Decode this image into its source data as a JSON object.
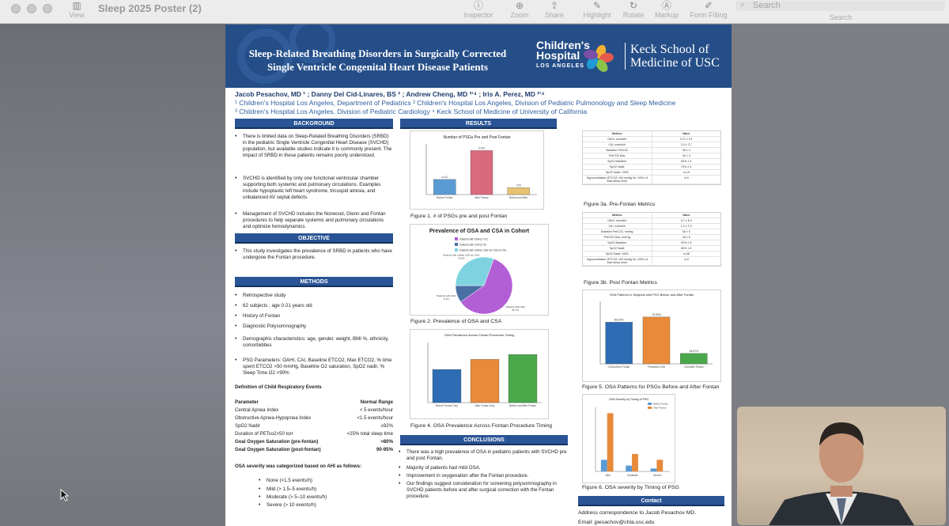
{
  "window": {
    "title": "Sleep 2025 Poster (2)"
  },
  "toolbar": {
    "view": "View",
    "inspector": "Inspector",
    "zoom": "Zoom",
    "share": "Share",
    "highlight": "Highlight",
    "rotate": "Rotate",
    "markup": "Markup",
    "form_filling": "Form Filling",
    "search_placeholder": "Search",
    "search_label": "Search"
  },
  "poster": {
    "title_line1": "Sleep-Related Breathing Disorders in Surgically Corrected",
    "title_line2": "Single Ventricle Congenital Heart Disease Patients",
    "chla_line1": "Children's",
    "chla_line2": "Hospital",
    "chla_line3": "LOS ANGELES",
    "usc_line1": "Keck School of",
    "usc_line2": "Medicine of USC",
    "authors": "Jacob Pesachov, MD ¹ ; Danny Del Cid-Linares, BS ² ; Andrew Cheng, MD ³ʼ⁴ ; Iris A. Perez, MD ²ʼ⁴",
    "affil1": "¹ Children's Hospital Los Angeles, Department of Pediatrics ² Children's Hospital Los Angeles, Division of Pediatric Pulmonology and Sleep Medicine",
    "affil2": "³ Children's Hospital Los Angeles, Division of Pediatric Cardiology ⁴ Keck School of Medicine of University of California",
    "background": {
      "head": "BACKGROUND",
      "items": [
        "There is limited data on Sleep-Related Breathing Disorders (SRBD) in the pediatric Single Ventricle Congenital Heart Disease (SVCHD) population, but available studies indicate it is commonly present. The impact of SRBD in these patients remains poorly understood.",
        "SVCHD is identified by only one functional ventricular chamber supporting both systemic and pulmonary circulations. Examples include hypoplastic left heart syndrome, tricuspid atresia, and unbalanced AV septal defects.",
        "Management of SVCHD includes the Norwood, Glenn and Fontan procedures to help separate systemic and pulmonary circulations and optimize hemodynamics."
      ]
    },
    "objective": {
      "head": "OBJECTIVE",
      "items": [
        "This study investigates the prevalence of SRBD in patients who have undergone the Fontan procedure."
      ]
    },
    "methods": {
      "head": "METHODS",
      "items": [
        "Retrospective study",
        "62 subjects ; age 0-21 years old",
        "History of Fontan",
        "Diagnostic Polysomnography",
        "Demographic characteristics: age, gender, weight, BMI %, ethnicity, comorbidities",
        "PSG Parameters: OAHI, CAI, Baseline ETCO2, Max ETCO2, % time spent ETCO2 >50 mmHg, Baseline O2 saturation, SpO2 nadir, % Sleep Time O2 <90%"
      ]
    },
    "def_title": "Definition of Child Respiratory Events",
    "def_header": [
      "Parameter",
      "Normal Range"
    ],
    "def_rows": [
      [
        "Central Apnea Index",
        "< 5 events/hour"
      ],
      [
        "Obstructive Apnea-Hypopnea Index",
        "<1.5 events/hour"
      ],
      [
        "SpO2 Nadir",
        "≥92%"
      ],
      [
        "Duration of PETco2>50 torr",
        "<25% total sleep time"
      ]
    ],
    "def_goal_rows": [
      [
        "Goal Oxygen Saturation (pre-fontan)",
        ">80%"
      ],
      [
        "Goal Oxygen Saturation (post-fontan)",
        "90-95%"
      ]
    ],
    "severity_title": "OSA severity was categorized based on AHI as follows:",
    "severity_items": [
      "None (<1.5 events/h)",
      "Mild (> 1.5–5 events/h)",
      "Moderate (> 5–10 events/h)",
      "Severe (> 10 events/h)"
    ],
    "results_head": "RESULTS",
    "fig1_cap": "Figure 1. # of PSGs pre and post Fontan",
    "fig2_cap": "Figure 2. Prevalence of OSA and CSA",
    "fig4_cap": "Figure 4. OSA Prevalence Across Fontan Procedure Timing",
    "fig3a_cap": "Figure 3a. Pre-Fontan Metrics",
    "fig3b_cap": "Figure 3b. Post Fontan Metrics",
    "fig5_cap": "Figure 5. OSA Patterns for PSGs Before and After Fontan",
    "fig6_cap": "Figure 6. OSA severity by Timing of PSG",
    "conclusions": {
      "head": "CONCLUSIONS",
      "items": [
        "There was a high prevalence of OSA in pediatric patients with SVCHD pre and post Fontan.",
        "Majority of patients had mild OSA.",
        "Improvement in oxygenation after the Fontan procedure.",
        "Our findings suggest consideration for screening polysomnography in SVCHD patients before and after surgical correction with the Fontan procedure."
      ]
    },
    "contact": {
      "head": "Contact",
      "line1": "Address correspondence to Jacob Pesachov MD.",
      "line2": "Email: jpesachov@chla.usc.edu"
    },
    "metrics_header": [
      "Metrics",
      "Value"
    ],
    "pre_metrics": [
      [
        "OAHI, events/h",
        "3.27 ± 5.1"
      ],
      [
        "CAI, events/h",
        "3.4 ± 3.7"
      ],
      [
        "Baseline PetCO2",
        "35 ± 4"
      ],
      [
        "PetCO2 Max",
        "40 ± 4"
      ],
      [
        "SpO2 Baseline",
        "83% ± 4"
      ],
      [
        "SpO2 Nadir",
        "73% ± 5"
      ],
      [
        "SpO2 Nadir <90%",
        "n=19"
      ],
      [
        "Hypoventilation (ETCO2 >50 mmHg for >25% of total sleep time)",
        "n=0"
      ]
    ],
    "post_metrics": [
      [
        "OAHI, events/h",
        "4.7 ± 8.4"
      ],
      [
        "CAI, events/h",
        "1.2 ± 1.0"
      ],
      [
        "Baseline PetCO2, mmHg",
        "36 ± 5"
      ],
      [
        "PetCO2 Max, mmHg",
        "46 ± 8"
      ],
      [
        "SpO2 Baseline",
        "92% ± 5"
      ],
      [
        "SpO2 Nadir",
        "84% ± 8"
      ],
      [
        "SpO2 Nadir <90%",
        "n=38"
      ],
      [
        "Hypoventilation (ETCO2 >50 mmHg for >25% of total sleep time)",
        "n=0"
      ]
    ]
  },
  "chart_data": [
    {
      "type": "bar",
      "title": "Number of PSGs Pre and Post Fontan",
      "categories": [
        "Before Fontan",
        "After Fontan",
        "Before and After"
      ],
      "values": [
        11,
        32,
        5
      ],
      "data_labels": [
        "n=11",
        "n=32",
        "n=5"
      ],
      "colors": [
        "#5b9bd5",
        "#d96a7e",
        "#e8c170"
      ]
    },
    {
      "type": "pie",
      "title": "Prevalence of OSA and CSA in Cohort",
      "categories": [
        "Patients with OSA",
        "Patients with CSA",
        "Patients with neither CSA nor OSA"
      ],
      "values": [
        59.7,
        9.7,
        30.6
      ],
      "legend": [
        "Patients with OSA (n=37)",
        "Patients with CSA (n=6)",
        "Patients with neither CSA nor OSA (n=19)"
      ],
      "colors": [
        "#b25fd6",
        "#4a6fa5",
        "#7fd3e0"
      ]
    },
    {
      "type": "bar",
      "title": "OSA Prevalence Across Fontan Procedure Timing",
      "categories": [
        "Before Fontan Only",
        "After Fontan Only",
        "Before and After Fontan"
      ],
      "values": [
        55.2,
        71.9,
        80
      ],
      "ylim": [
        0,
        100
      ],
      "colors": [
        "#2e6db4",
        "#e88a3a",
        "#4aa84a"
      ]
    },
    {
      "type": "bar",
      "title": "OSA Patterns in Subjects with PSG Before and After Fontan",
      "categories": [
        "OSA before Fontan",
        "Persistent OSA",
        "OSA after Fontan"
      ],
      "values": [
        66.67,
        75,
        16.67
      ],
      "data_labels": [
        "66.67%",
        "75.00%",
        "16.67%"
      ],
      "ylim": [
        0,
        100
      ],
      "colors": [
        "#2e6db4",
        "#e88a3a",
        "#4aa84a"
      ]
    },
    {
      "type": "bar",
      "title": "OSA Severity by Timing of PSG",
      "categories": [
        "Mild",
        "Moderate",
        "Severe"
      ],
      "series": [
        {
          "name": "Before Fontan",
          "values": [
            4,
            2,
            1
          ]
        },
        {
          "name": "After Fontan",
          "values": [
            20,
            6,
            4
          ]
        }
      ],
      "ylim": [
        0,
        22
      ],
      "colors": [
        "#5b9bd5",
        "#e88a3a"
      ]
    }
  ],
  "colors": {
    "poster_blue": "#2a5495",
    "toolbar_bg": "#ececec"
  }
}
